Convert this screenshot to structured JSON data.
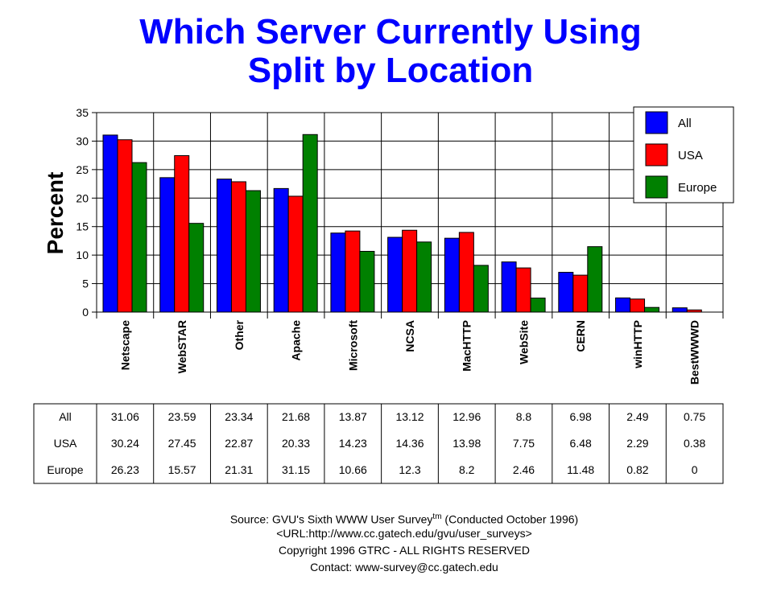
{
  "title_line1": "Which Server Currently Using",
  "title_line2": "Split by Location",
  "chart_data": {
    "type": "bar",
    "ylabel": "Percent",
    "ylim": [
      0,
      35
    ],
    "yticks": [
      0,
      5,
      10,
      15,
      20,
      25,
      30,
      35
    ],
    "grid": true,
    "legend_position": "top-right",
    "categories": [
      "Netscape",
      "WebSTAR",
      "Other",
      "Apache",
      "Microsoft",
      "NCSA",
      "MacHTTP",
      "WebSite",
      "CERN",
      "winHTTP",
      "BestWWWD"
    ],
    "category_labels": [
      "Netscape",
      "WebSTAR",
      "Other",
      "Apache",
      "Microsoft",
      "NCSA",
      "MacHTTP",
      "WebSite",
      "CERN",
      "winHTTP",
      "BestWWWD"
    ],
    "series": [
      {
        "name": "All",
        "color": "#0000ff",
        "values": [
          31.06,
          23.59,
          23.34,
          21.68,
          13.87,
          13.12,
          12.96,
          8.8,
          6.98,
          2.49,
          0.75
        ]
      },
      {
        "name": "USA",
        "color": "#ff0000",
        "values": [
          30.24,
          27.45,
          22.87,
          20.33,
          14.23,
          14.36,
          13.98,
          7.75,
          6.48,
          2.29,
          0.38
        ]
      },
      {
        "name": "Europe",
        "color": "#008000",
        "values": [
          26.23,
          15.57,
          21.31,
          31.15,
          10.66,
          12.3,
          8.2,
          2.46,
          11.48,
          0.82,
          0
        ]
      }
    ]
  },
  "source": {
    "line1_prefix": "Source: GVU's Sixth WWW User Survey",
    "line1_sup": "tm",
    "line1_suffix": "  (Conducted October 1996)",
    "line2": "<URL:http://www.cc.gatech.edu/gvu/user_surveys>",
    "line3": "Copyright 1996 GTRC -  ALL RIGHTS RESERVED",
    "line4": "Contact: www-survey@cc.gatech.edu"
  }
}
